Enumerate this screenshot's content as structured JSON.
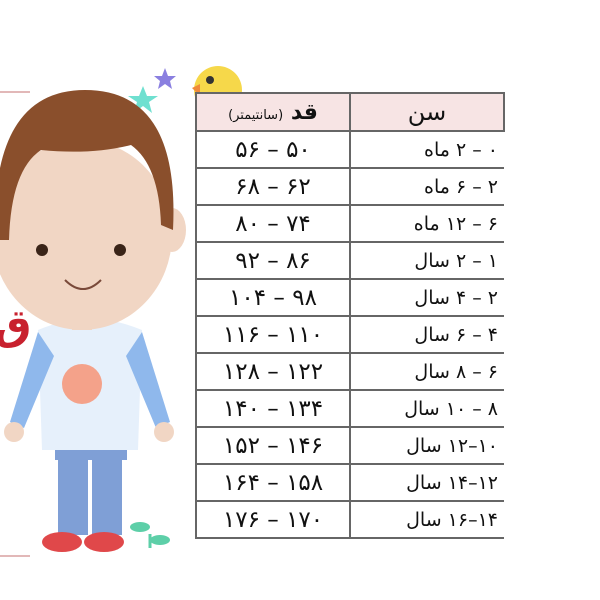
{
  "header": {
    "age": "سن",
    "height": "قد",
    "height_unit": "(سانتیمتر)"
  },
  "side_letter": "ق",
  "rows": [
    {
      "age": "۰ – ۲ ماه",
      "height": "۵۰ – ۵۶"
    },
    {
      "age": "۲ – ۶ ماه",
      "height": "۶۲ – ۶۸"
    },
    {
      "age": "۶ – ۱۲ ماه",
      "height": "۷۴ – ۸۰"
    },
    {
      "age": "۱ – ۲ سال",
      "height": "۸۶ – ۹۲"
    },
    {
      "age": "۲ – ۴ سال",
      "height": "۹۸ – ۱۰۴"
    },
    {
      "age": "۴ – ۶ سال",
      "height": "۱۱۰ – ۱۱۶"
    },
    {
      "age": "۶ – ۸ سال",
      "height": "۱۲۲ – ۱۲۸"
    },
    {
      "age": "۸ – ۱۰ سال",
      "height": "۱۳۴ – ۱۴۰"
    },
    {
      "age": "۱۰–۱۲ سال",
      "height": "۱۴۶ – ۱۵۲"
    },
    {
      "age": "۱۲–۱۴ سال",
      "height": "۱۵۸ – ۱۶۴"
    },
    {
      "age": "۱۴–۱۶ سال",
      "height": "۱۷۰ – ۱۷۶"
    }
  ],
  "colors": {
    "header_bg": "#f7e4e4",
    "accent_red": "#c8212e",
    "hair": "#8a4f2c",
    "shirt": "#e6f0fb",
    "sleeve": "#8fb8ec",
    "pants": "#7f9fd6"
  }
}
